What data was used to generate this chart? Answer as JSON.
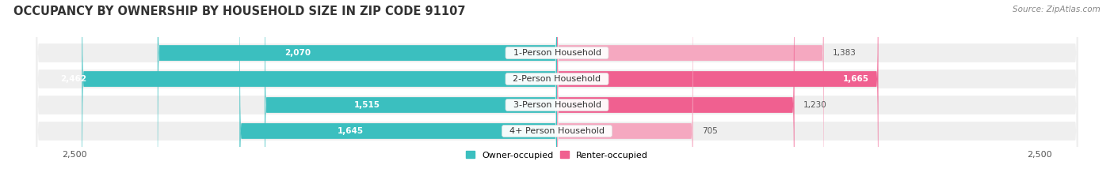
{
  "title": "OCCUPANCY BY OWNERSHIP BY HOUSEHOLD SIZE IN ZIP CODE 91107",
  "source": "Source: ZipAtlas.com",
  "categories": [
    "1-Person Household",
    "2-Person Household",
    "3-Person Household",
    "4+ Person Household"
  ],
  "owner_values": [
    2070,
    2462,
    1515,
    1645
  ],
  "renter_values": [
    1383,
    1665,
    1230,
    705
  ],
  "owner_color": "#3bbfbf",
  "renter_colors": [
    "#f5a8c0",
    "#f06090",
    "#f06090",
    "#f5a8c0"
  ],
  "axis_max": 2500,
  "owner_label": "Owner-occupied",
  "renter_label": "Renter-occupied",
  "renter_legend_color": "#f06090",
  "bg_color": "#ffffff",
  "bar_bg_color": "#efefef",
  "title_fontsize": 10.5,
  "cat_fontsize": 8,
  "value_fontsize": 7.5,
  "legend_fontsize": 8,
  "source_fontsize": 7.5,
  "tick_fontsize": 8,
  "owner_val_inside": [
    true,
    false,
    true,
    true
  ],
  "renter_val_inside": [
    false,
    true,
    false,
    false
  ]
}
